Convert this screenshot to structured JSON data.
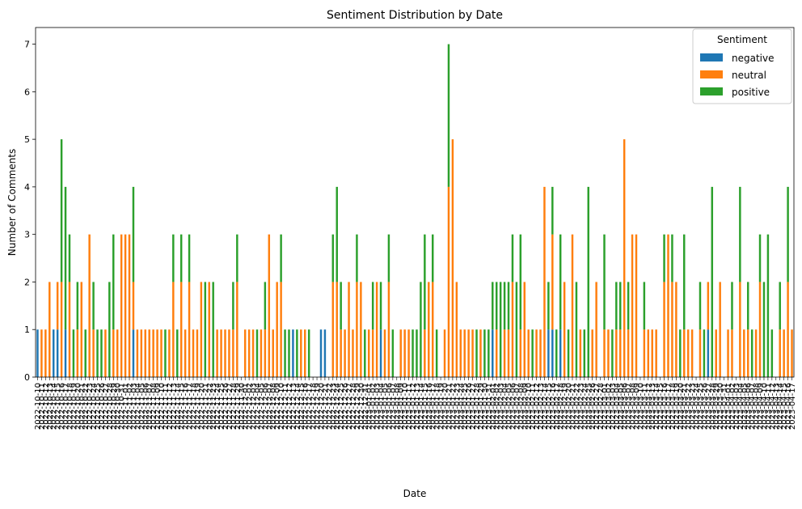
{
  "chart_data": {
    "type": "bar",
    "stacked": true,
    "title": "Sentiment Distribution by Date",
    "xlabel": "Date",
    "ylabel": "Number of Comments",
    "ylim": [
      0,
      7.35
    ],
    "yticks": [
      0,
      1,
      2,
      3,
      4,
      5,
      6,
      7
    ],
    "legend": {
      "title": "Sentiment",
      "placement": "top-right"
    },
    "grid": false,
    "colors": {
      "negative": "#1f77b4",
      "neutral": "#ff7f0e",
      "positive": "#2ca02c"
    },
    "categories": [
      "2022-10-10",
      "2022-10-11",
      "2022-10-12",
      "2022-10-13",
      "2022-10-14",
      "2022-10-15",
      "2022-10-16",
      "2022-10-17",
      "2022-10-18",
      "2022-10-19",
      "2022-10-20",
      "2022-10-21",
      "2022-10-22",
      "2022-10-23",
      "2022-10-24",
      "2022-10-25",
      "2022-10-26",
      "2022-10-27",
      "2022-10-28",
      "2022-10-29",
      "2022-10-30",
      "2022-10-31",
      "2022-11-01",
      "2022-11-02",
      "2022-11-03",
      "2022-11-04",
      "2022-11-05",
      "2022-11-06",
      "2022-11-07",
      "2022-11-08",
      "2022-11-09",
      "2022-11-10",
      "2022-11-11",
      "2022-11-12",
      "2022-11-13",
      "2022-11-14",
      "2022-11-15",
      "2022-11-16",
      "2022-11-17",
      "2022-11-18",
      "2022-11-19",
      "2022-11-20",
      "2022-11-21",
      "2022-11-22",
      "2022-11-23",
      "2022-11-24",
      "2022-11-25",
      "2022-11-26",
      "2022-11-27",
      "2022-11-28",
      "2022-11-29",
      "2022-11-30",
      "2022-12-01",
      "2022-12-02",
      "2022-12-03",
      "2022-12-04",
      "2022-12-05",
      "2022-12-06",
      "2022-12-07",
      "2022-12-08",
      "2022-12-09",
      "2022-12-10",
      "2022-12-11",
      "2022-12-12",
      "2022-12-13",
      "2022-12-14",
      "2022-12-15",
      "2022-12-16",
      "2022-12-17",
      "2022-12-18",
      "2022-12-19",
      "2022-12-20",
      "2022-12-21",
      "2022-12-22",
      "2022-12-23",
      "2022-12-24",
      "2022-12-25",
      "2022-12-26",
      "2022-12-27",
      "2022-12-28",
      "2022-12-29",
      "2022-12-30",
      "2022-12-31",
      "2023-01-01",
      "2023-01-02",
      "2023-01-03",
      "2023-01-04",
      "2023-01-05",
      "2023-01-06",
      "2023-01-07",
      "2023-01-08",
      "2023-01-09",
      "2023-01-10",
      "2023-01-11",
      "2023-01-12",
      "2023-01-13",
      "2023-01-14",
      "2023-01-15",
      "2023-01-16",
      "2023-01-17",
      "2023-01-18",
      "2023-01-19",
      "2023-01-20",
      "2023-01-21",
      "2023-01-22",
      "2023-01-23",
      "2023-01-24",
      "2023-01-25",
      "2023-01-26",
      "2023-01-27",
      "2023-01-28",
      "2023-01-29",
      "2023-01-30",
      "2023-01-31",
      "2023-02-01",
      "2023-02-02",
      "2023-02-03",
      "2023-02-04",
      "2023-02-05",
      "2023-02-06",
      "2023-02-07",
      "2023-02-08",
      "2023-02-09",
      "2023-02-10",
      "2023-02-11",
      "2023-02-12",
      "2023-02-13",
      "2023-02-14",
      "2023-02-15",
      "2023-02-16",
      "2023-02-17",
      "2023-02-18",
      "2023-02-19",
      "2023-02-20",
      "2023-02-21",
      "2023-02-22",
      "2023-02-23",
      "2023-02-24",
      "2023-02-25",
      "2023-02-26",
      "2023-02-27",
      "2023-02-28",
      "2023-03-01",
      "2023-03-02",
      "2023-03-03",
      "2023-03-04",
      "2023-03-05",
      "2023-03-06",
      "2023-03-07",
      "2023-03-08",
      "2023-03-09",
      "2023-03-10",
      "2023-03-11",
      "2023-03-12",
      "2023-03-13",
      "2023-03-14",
      "2023-03-15",
      "2023-03-16",
      "2023-03-17",
      "2023-03-18",
      "2023-03-19",
      "2023-03-20",
      "2023-03-21",
      "2023-03-22",
      "2023-03-23",
      "2023-03-24",
      "2023-03-25",
      "2023-03-26",
      "2023-03-27",
      "2023-03-28",
      "2023-03-29",
      "2023-03-30",
      "2023-03-31",
      "2023-04-01",
      "2023-04-02",
      "2023-04-03",
      "2023-04-04",
      "2023-04-05",
      "2023-04-06",
      "2023-04-07",
      "2023-04-08",
      "2023-04-09",
      "2023-04-10",
      "2023-04-11",
      "2023-04-12",
      "2023-04-13",
      "2023-04-14",
      "2023-04-15",
      "2023-04-16",
      "2023-04-17"
    ],
    "series": [
      {
        "name": "negative",
        "values": [
          1,
          0,
          0,
          0,
          1,
          1,
          0,
          1,
          0,
          0,
          0,
          0,
          0,
          0,
          0,
          0,
          0,
          0,
          0,
          0,
          0,
          0,
          0,
          0,
          1,
          0,
          0,
          0,
          0,
          0,
          0,
          0,
          0,
          0,
          0,
          0,
          0,
          0,
          0,
          0,
          0,
          0,
          0,
          0,
          0,
          0,
          0,
          0,
          0,
          0,
          0,
          0,
          0,
          0,
          0,
          0,
          0,
          0,
          0,
          0,
          0,
          0,
          0,
          0,
          1,
          0,
          0,
          0,
          0,
          0,
          0,
          1,
          1,
          0,
          0,
          0,
          0,
          0,
          0,
          0,
          0,
          0,
          0,
          0,
          0,
          0,
          1,
          0,
          0,
          0,
          0,
          0,
          0,
          0,
          0,
          0,
          0,
          0,
          0,
          0,
          0,
          0,
          0,
          0,
          0,
          0,
          0,
          0,
          0,
          0,
          0,
          0,
          0,
          0,
          1,
          0,
          0,
          0,
          0,
          0,
          0,
          0,
          0,
          0,
          0,
          0,
          0,
          0,
          1,
          1,
          0,
          1,
          0,
          0,
          0,
          0,
          0,
          0,
          0,
          0,
          0,
          0,
          0,
          0,
          0,
          0,
          0,
          0,
          0,
          0,
          0,
          0,
          0,
          0,
          0,
          0,
          0,
          0,
          0,
          0,
          0,
          0,
          0,
          0,
          0,
          0,
          0,
          0,
          1,
          0,
          0,
          0,
          0,
          0,
          0,
          0,
          0,
          0,
          0,
          0,
          0,
          0,
          0,
          0,
          0,
          0,
          0,
          0,
          0,
          0
        ]
      },
      {
        "name": "neutral",
        "values": [
          0,
          1,
          1,
          2,
          0,
          1,
          2,
          0,
          2,
          0,
          1,
          2,
          0,
          3,
          1,
          0,
          0,
          1,
          0,
          1,
          1,
          3,
          3,
          3,
          1,
          1,
          1,
          1,
          1,
          1,
          1,
          1,
          0,
          1,
          2,
          0,
          2,
          1,
          2,
          1,
          1,
          2,
          0,
          2,
          0,
          1,
          1,
          1,
          1,
          1,
          2,
          0,
          1,
          1,
          1,
          0,
          1,
          1,
          3,
          1,
          2,
          2,
          0,
          0,
          0,
          0,
          1,
          1,
          0,
          0,
          0,
          0,
          0,
          0,
          2,
          2,
          1,
          1,
          2,
          1,
          2,
          2,
          0,
          1,
          1,
          2,
          0,
          1,
          2,
          0,
          0,
          1,
          1,
          1,
          0,
          0,
          0,
          1,
          2,
          2,
          0,
          0,
          1,
          4,
          5,
          2,
          1,
          1,
          1,
          1,
          0,
          1,
          0,
          0,
          0,
          1,
          0,
          1,
          1,
          2,
          0,
          1,
          2,
          1,
          0,
          1,
          1,
          4,
          0,
          2,
          0,
          0,
          2,
          0,
          3,
          0,
          1,
          0,
          0,
          1,
          2,
          0,
          1,
          1,
          0,
          1,
          1,
          5,
          1,
          3,
          3,
          0,
          1,
          1,
          1,
          1,
          0,
          2,
          3,
          2,
          2,
          0,
          1,
          1,
          1,
          0,
          1,
          0,
          1,
          0,
          1,
          2,
          0,
          1,
          1,
          0,
          2,
          1,
          1,
          0,
          1,
          2,
          0,
          0,
          0,
          0,
          1,
          1,
          2,
          1
        ]
      },
      {
        "name": "positive",
        "values": [
          0,
          0,
          0,
          0,
          0,
          0,
          3,
          3,
          1,
          1,
          1,
          0,
          1,
          0,
          1,
          1,
          1,
          0,
          2,
          2,
          0,
          0,
          0,
          0,
          2,
          0,
          0,
          0,
          0,
          0,
          0,
          0,
          1,
          0,
          1,
          1,
          1,
          0,
          1,
          0,
          0,
          0,
          2,
          0,
          2,
          0,
          0,
          0,
          0,
          1,
          1,
          0,
          0,
          0,
          0,
          1,
          0,
          1,
          0,
          0,
          0,
          1,
          1,
          1,
          0,
          1,
          0,
          0,
          1,
          0,
          0,
          0,
          0,
          0,
          1,
          2,
          1,
          0,
          0,
          0,
          1,
          0,
          1,
          0,
          1,
          0,
          1,
          0,
          1,
          1,
          0,
          0,
          0,
          0,
          1,
          1,
          2,
          2,
          0,
          1,
          1,
          0,
          0,
          3,
          0,
          0,
          0,
          0,
          0,
          0,
          1,
          0,
          1,
          1,
          1,
          1,
          2,
          1,
          1,
          1,
          2,
          2,
          0,
          0,
          1,
          0,
          0,
          0,
          1,
          1,
          1,
          2,
          0,
          1,
          0,
          2,
          0,
          1,
          4,
          0,
          0,
          0,
          2,
          0,
          1,
          1,
          1,
          0,
          1,
          0,
          0,
          0,
          1,
          0,
          0,
          0,
          0,
          1,
          0,
          1,
          0,
          1,
          2,
          0,
          0,
          0,
          1,
          1,
          0,
          4,
          0,
          0,
          0,
          0,
          1,
          0,
          2,
          0,
          1,
          1,
          0,
          1,
          2,
          3,
          1,
          0,
          1,
          0,
          2,
          0
        ]
      }
    ]
  }
}
